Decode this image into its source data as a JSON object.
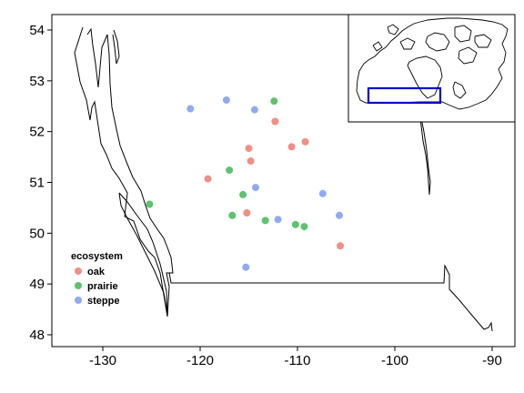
{
  "chart_data": {
    "type": "scatter",
    "subtype": "map",
    "title": "",
    "xlabel": "",
    "ylabel": "",
    "xlim": [
      -135,
      -89.5
    ],
    "ylim": [
      47.8,
      54.25
    ],
    "x_ticks": [
      -130,
      -120,
      -110,
      -100,
      -90
    ],
    "x_tick_labels": [
      "-130",
      "-120",
      "-110",
      "-100",
      "-90"
    ],
    "y_ticks": [
      48,
      49,
      50,
      51,
      52,
      53,
      54
    ],
    "y_tick_labels": [
      "48",
      "49",
      "50",
      "51",
      "52",
      "53",
      "54"
    ],
    "grid": false,
    "legend": {
      "title": "ecosystem",
      "placement": "bottom-left"
    },
    "colors": {
      "oak": "#F08F86",
      "prairie": "#5DC36D",
      "steppe": "#8FAAF5",
      "inset_box": "#0000CC"
    },
    "series": [
      {
        "name": "oak",
        "x": [
          -112.3,
          -115.0,
          -114.8,
          -110.6,
          -109.2,
          -119.2,
          -115.2,
          -105.6
        ],
        "y": [
          52.2,
          51.67,
          51.42,
          51.7,
          51.8,
          51.07,
          50.4,
          49.75
        ]
      },
      {
        "name": "prairie",
        "x": [
          -112.4,
          -117.0,
          -115.6,
          -116.7,
          -113.3,
          -110.2,
          -109.3,
          -125.2
        ],
        "y": [
          52.6,
          51.24,
          50.76,
          50.35,
          50.25,
          50.17,
          50.13,
          50.57
        ]
      },
      {
        "name": "steppe",
        "x": [
          -121.0,
          -117.3,
          -114.4,
          -114.3,
          -107.4,
          -112.0,
          -105.7,
          -115.3
        ],
        "y": [
          52.45,
          52.62,
          52.43,
          50.9,
          50.78,
          50.27,
          50.35,
          49.33
        ]
      }
    ]
  }
}
